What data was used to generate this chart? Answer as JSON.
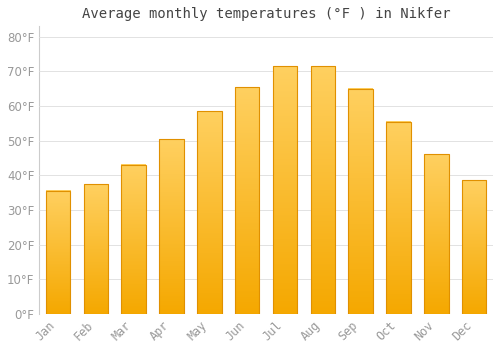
{
  "title": "Average monthly temperatures (°F ) in Nikfer",
  "months": [
    "Jan",
    "Feb",
    "Mar",
    "Apr",
    "May",
    "Jun",
    "Jul",
    "Aug",
    "Sep",
    "Oct",
    "Nov",
    "Dec"
  ],
  "values": [
    35.5,
    37.5,
    43,
    50.5,
    58.5,
    65.5,
    71.5,
    71.5,
    65,
    55.5,
    46,
    38.5
  ],
  "bar_color_top": "#F5A800",
  "bar_color_bottom": "#FFD060",
  "background_color": "#FFFFFF",
  "grid_color": "#DDDDDD",
  "ylim": [
    0,
    83
  ],
  "yticks": [
    0,
    10,
    20,
    30,
    40,
    50,
    60,
    70,
    80
  ],
  "title_fontsize": 10,
  "tick_fontsize": 8.5,
  "tick_label_color": "#999999",
  "title_color": "#444444",
  "bar_width": 0.65
}
